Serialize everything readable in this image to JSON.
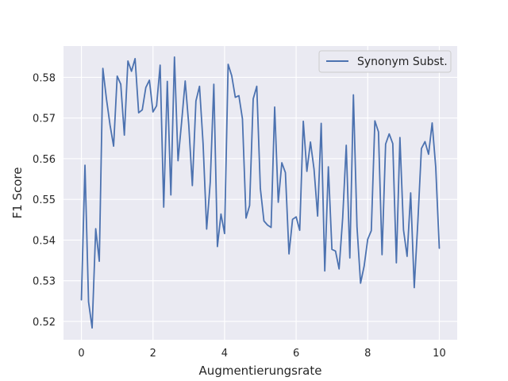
{
  "chart_data": {
    "type": "line",
    "xlabel": "Augmentierungsrate",
    "ylabel": "F1 Score",
    "xlim": [
      -0.5,
      10.5
    ],
    "ylim": [
      0.5155,
      0.5877
    ],
    "xticks": [
      0,
      2,
      4,
      6,
      8,
      10
    ],
    "yticks": [
      0.52,
      0.53,
      0.54,
      0.55,
      0.56,
      0.57,
      0.58
    ],
    "grid": true,
    "legend_position": "top-right",
    "series": [
      {
        "name": "Synonym Subst.",
        "color": "#4c72b0",
        "x": [
          0.0,
          0.1,
          0.2,
          0.3,
          0.4,
          0.5,
          0.6,
          0.7,
          0.8,
          0.9,
          1.0,
          1.1,
          1.2,
          1.3,
          1.4,
          1.5,
          1.6,
          1.7,
          1.8,
          1.9,
          2.0,
          2.1,
          2.2,
          2.3,
          2.4,
          2.5,
          2.6,
          2.7,
          2.8,
          2.9,
          3.0,
          3.1,
          3.2,
          3.3,
          3.4,
          3.5,
          3.6,
          3.7,
          3.8,
          3.9,
          4.0,
          4.1,
          4.2,
          4.3,
          4.4,
          4.5,
          4.6,
          4.7,
          4.8,
          4.9,
          5.0,
          5.1,
          5.2,
          5.3,
          5.4,
          5.5,
          5.6,
          5.7,
          5.8,
          5.9,
          6.0,
          6.1,
          6.2,
          6.3,
          6.4,
          6.5,
          6.6,
          6.7,
          6.8,
          6.9,
          7.0,
          7.1,
          7.2,
          7.3,
          7.4,
          7.5,
          7.6,
          7.7,
          7.8,
          7.9,
          8.0,
          8.1,
          8.2,
          8.3,
          8.4,
          8.5,
          8.6,
          8.7,
          8.8,
          8.9,
          9.0,
          9.1,
          9.2,
          9.3,
          9.4,
          9.5,
          9.6,
          9.7,
          9.8,
          9.9,
          10.0
        ],
        "y": [
          0.5253,
          0.5584,
          0.5248,
          0.5184,
          0.5428,
          0.5348,
          0.5822,
          0.5747,
          0.5683,
          0.5631,
          0.5803,
          0.5783,
          0.5658,
          0.584,
          0.5815,
          0.5846,
          0.5713,
          0.572,
          0.5775,
          0.5793,
          0.5715,
          0.573,
          0.583,
          0.5481,
          0.579,
          0.5511,
          0.585,
          0.5595,
          0.569,
          0.5791,
          0.5683,
          0.5534,
          0.5742,
          0.5778,
          0.5637,
          0.5427,
          0.5542,
          0.5783,
          0.5384,
          0.5464,
          0.5416,
          0.5832,
          0.5804,
          0.5751,
          0.5755,
          0.5698,
          0.5454,
          0.5485,
          0.5747,
          0.5778,
          0.5527,
          0.5447,
          0.5437,
          0.5431,
          0.5727,
          0.5493,
          0.559,
          0.5566,
          0.5366,
          0.5451,
          0.5457,
          0.5424,
          0.5692,
          0.5569,
          0.5641,
          0.5574,
          0.5459,
          0.5687,
          0.5324,
          0.558,
          0.5377,
          0.5373,
          0.5329,
          0.5454,
          0.5633,
          0.5356,
          0.5757,
          0.5433,
          0.5294,
          0.5336,
          0.5402,
          0.5423,
          0.5693,
          0.5666,
          0.5364,
          0.5636,
          0.5661,
          0.5637,
          0.5344,
          0.5652,
          0.5425,
          0.536,
          0.5516,
          0.5283,
          0.5444,
          0.5625,
          0.5642,
          0.5611,
          0.5688,
          0.5579,
          0.538
        ]
      }
    ]
  }
}
